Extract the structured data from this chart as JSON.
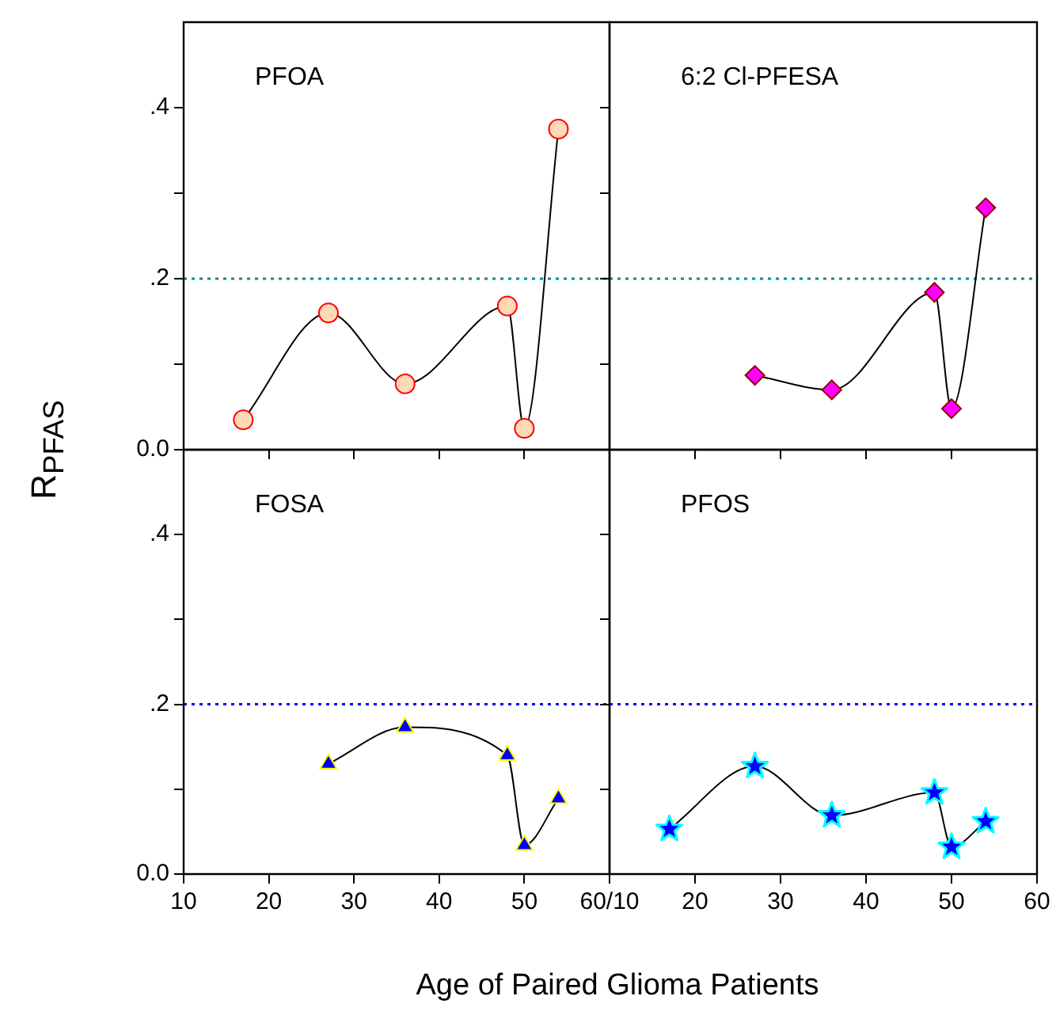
{
  "chart_data": [
    {
      "type": "line",
      "title": "PFOA",
      "ylabel": "R$_{PFAS}$",
      "xlim": [
        10,
        60
      ],
      "xticks": [
        {
          "value": 10,
          "label": null
        },
        {
          "value": 20,
          "label": null
        },
        {
          "value": 30,
          "label": null
        },
        {
          "value": 40,
          "label": null
        },
        {
          "value": 50,
          "label": null
        },
        {
          "value": 60,
          "label": null
        }
      ],
      "ylim": [
        0,
        0.5
      ],
      "yticks": [
        {
          "value": 0,
          "label": "0.0"
        },
        {
          "value": 0.1,
          "label": null
        },
        {
          "value": 0.2,
          "label": ".2"
        },
        {
          "value": 0.3,
          "label": null
        },
        {
          "value": 0.4,
          "label": ".4"
        }
      ],
      "tick_labels": "y",
      "marker": "circle",
      "line_style": "solid",
      "grid": false,
      "legend": false,
      "x": [
        17,
        27,
        36,
        48,
        50,
        54
      ],
      "series": [
        {
          "color": "#ffdab9",
          "values": [
            0.035,
            0.16,
            0.077,
            0.168,
            0.025,
            0.375
          ]
        }
      ],
      "ref_lines": [
        {
          "axis": "y",
          "value": 0.2,
          "color": "#008b8b",
          "line_style": "dotted"
        }
      ]
    },
    {
      "type": "line",
      "title": "6:2 Cl-PFESA",
      "xlim": [
        10,
        60
      ],
      "xticks": [
        {
          "value": 10,
          "label": null
        },
        {
          "value": 20,
          "label": null
        },
        {
          "value": 30,
          "label": null
        },
        {
          "value": 40,
          "label": null
        },
        {
          "value": 50,
          "label": null
        },
        {
          "value": 60,
          "label": null
        }
      ],
      "ylim": [
        0,
        0.5
      ],
      "yticks": [
        {
          "value": 0,
          "label": null
        },
        {
          "value": 0.1,
          "label": null
        },
        {
          "value": 0.2,
          "label": null
        },
        {
          "value": 0.3,
          "label": null
        },
        {
          "value": 0.4,
          "label": null
        }
      ],
      "tick_labels": false,
      "marker": "diamond",
      "line_style": "solid",
      "grid": false,
      "legend": false,
      "x": [
        27,
        36,
        48,
        50,
        54
      ],
      "series": [
        {
          "color": "#ff00ff",
          "values": [
            0.087,
            0.07,
            0.184,
            0.048,
            0.283
          ]
        }
      ],
      "ref_lines": [
        {
          "axis": "y",
          "value": 0.2,
          "color": "#008b8b",
          "line_style": "dotted"
        }
      ]
    },
    {
      "type": "line",
      "title": "FOSA",
      "xlabel": "Age of Paired Glioma Patients",
      "xlim": [
        10,
        60
      ],
      "xticks": [
        10,
        20,
        30,
        40,
        50,
        {
          "value": 60,
          "label": "60/10"
        }
      ],
      "ylim": [
        0,
        0.5
      ],
      "yticks": [
        {
          "value": 0,
          "label": "0.0"
        },
        {
          "value": 0.1,
          "label": null
        },
        {
          "value": 0.2,
          "label": ".2"
        },
        {
          "value": 0.3,
          "label": null
        },
        {
          "value": 0.4,
          "label": ".4"
        }
      ],
      "marker": "triangle",
      "line_style": "solid",
      "grid": false,
      "legend": false,
      "x": [
        27,
        36,
        48,
        50,
        54
      ],
      "series": [
        {
          "color": "#0000ff",
          "values": [
            0.13,
            0.173,
            0.14,
            0.034,
            0.089
          ]
        }
      ],
      "ref_lines": [
        {
          "axis": "y",
          "value": 0.2,
          "color": "#0000ff",
          "line_style": "dotted"
        }
      ]
    },
    {
      "type": "line",
      "title": "PFOS",
      "xlim": [
        10,
        60
      ],
      "xticks": [
        {
          "value": 10,
          "label": null
        },
        20,
        30,
        40,
        50,
        60
      ],
      "ylim": [
        0,
        0.5
      ],
      "yticks": [
        {
          "value": 0,
          "label": null
        },
        {
          "value": 0.1,
          "label": null
        },
        {
          "value": 0.2,
          "label": null
        },
        {
          "value": 0.3,
          "label": null
        },
        {
          "value": 0.4,
          "label": null
        }
      ],
      "tick_labels": "x",
      "marker": "star",
      "line_style": "solid",
      "grid": false,
      "legend": false,
      "x": [
        17,
        27,
        36,
        48,
        50,
        54
      ],
      "series": [
        {
          "color": "#0000ff",
          "values": [
            0.053,
            0.127,
            0.069,
            0.096,
            0.032,
            0.062
          ]
        }
      ],
      "ref_lines": [
        {
          "axis": "y",
          "value": 0.2,
          "color": "#0000ff",
          "line_style": "dotted"
        }
      ]
    }
  ]
}
